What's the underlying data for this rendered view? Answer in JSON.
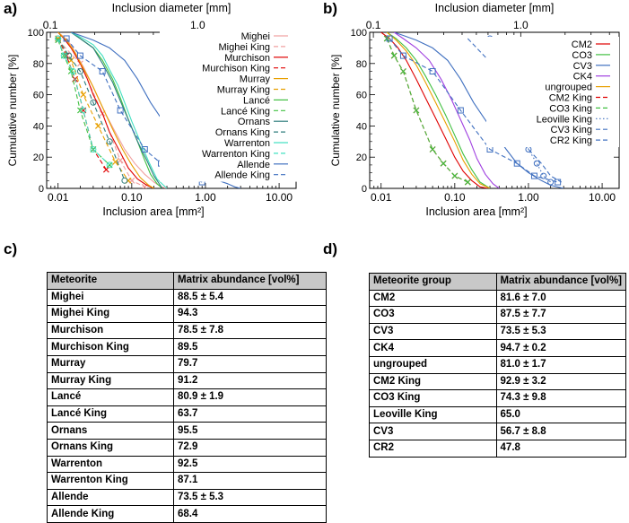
{
  "panels": {
    "a": "a)",
    "b": "b)",
    "c": "c)",
    "d": "d)"
  },
  "chart_data": [
    {
      "id": "a",
      "type": "line",
      "title": "",
      "xscale": "log",
      "xlim": [
        0.007,
        17
      ],
      "ylim": [
        0,
        100
      ],
      "xlabel": "Inclusion area [mm²]",
      "ylabel": "Cumulative number [%]",
      "x2label": "Inclusion diameter [mm]",
      "xticks": [
        0.01,
        0.1,
        1,
        10
      ],
      "xticklabels": [
        "0.01",
        "0.10",
        "1.00",
        "10.00"
      ],
      "x2ticks": [
        0.1,
        1
      ],
      "x2ticklabels": [
        "0.1",
        "1.0"
      ],
      "yticks": [
        0,
        20,
        40,
        60,
        80,
        100
      ],
      "yticklabels": [
        "0",
        "20",
        "40",
        "60",
        "80",
        "100"
      ],
      "legend_position": "top-right",
      "series": [
        {
          "name": "Mighei",
          "color": "#f0a0a0",
          "dash": "solid",
          "marker": "none",
          "x": [
            0.01,
            0.012,
            0.015,
            0.018,
            0.022,
            0.028,
            0.035,
            0.045,
            0.06,
            0.08,
            0.11,
            0.15,
            0.2,
            0.25,
            0.3
          ],
          "y": [
            100,
            97,
            92,
            85,
            78,
            68,
            58,
            47,
            36,
            25,
            16,
            9,
            4,
            1,
            0
          ]
        },
        {
          "name": "Mighei King",
          "color": "#f0a0a0",
          "dash": "dash",
          "marker": "x",
          "x": [
            0.01,
            0.02,
            0.04,
            0.07,
            0.1,
            0.15
          ],
          "y": [
            95,
            80,
            48,
            18,
            5,
            1
          ]
        },
        {
          "name": "Murchison",
          "color": "#e00000",
          "dash": "solid",
          "marker": "none",
          "x": [
            0.01,
            0.012,
            0.015,
            0.02,
            0.025,
            0.03,
            0.04,
            0.05,
            0.07,
            0.09,
            0.12,
            0.16,
            0.2
          ],
          "y": [
            100,
            96,
            90,
            80,
            70,
            60,
            48,
            36,
            23,
            13,
            6,
            2,
            0
          ]
        },
        {
          "name": "Murchison King",
          "color": "#e00000",
          "dash": "dash",
          "marker": "x",
          "x": [
            0.01,
            0.013,
            0.017,
            0.022,
            0.03,
            0.045
          ],
          "y": [
            96,
            85,
            70,
            50,
            25,
            12
          ]
        },
        {
          "name": "Murray",
          "color": "#e8a000",
          "dash": "solid",
          "marker": "none",
          "x": [
            0.01,
            0.013,
            0.017,
            0.022,
            0.03,
            0.04,
            0.055,
            0.075,
            0.1,
            0.13,
            0.17,
            0.2
          ],
          "y": [
            100,
            95,
            87,
            77,
            65,
            52,
            38,
            25,
            15,
            7,
            2,
            0
          ]
        },
        {
          "name": "Murray King",
          "color": "#e8a000",
          "dash": "dash",
          "marker": "x",
          "x": [
            0.01,
            0.015,
            0.022,
            0.035,
            0.06,
            0.09
          ],
          "y": [
            96,
            82,
            60,
            40,
            17,
            5
          ]
        },
        {
          "name": "Lancé",
          "color": "#40c040",
          "dash": "solid",
          "marker": "none",
          "x": [
            0.015,
            0.02,
            0.03,
            0.04,
            0.055,
            0.07,
            0.09,
            0.12,
            0.15,
            0.18,
            0.22,
            0.26
          ],
          "y": [
            100,
            96,
            90,
            82,
            70,
            58,
            44,
            30,
            18,
            9,
            3,
            0
          ]
        },
        {
          "name": "Lancé King",
          "color": "#40c040",
          "dash": "dash",
          "marker": "x",
          "x": [
            0.01,
            0.012,
            0.015,
            0.02,
            0.03,
            0.05
          ],
          "y": [
            95,
            85,
            75,
            50,
            25,
            15
          ]
        },
        {
          "name": "Ornans",
          "color": "#2e7d7d",
          "dash": "solid",
          "marker": "none",
          "x": [
            0.015,
            0.02,
            0.03,
            0.04,
            0.055,
            0.07,
            0.09,
            0.12,
            0.16,
            0.2,
            0.26
          ],
          "y": [
            100,
            96,
            90,
            80,
            68,
            56,
            44,
            30,
            18,
            8,
            0
          ]
        },
        {
          "name": "Ornans King",
          "color": "#2e7d7d",
          "dash": "dash",
          "marker": "o",
          "x": [
            0.01,
            0.014,
            0.02,
            0.03,
            0.05,
            0.08
          ],
          "y": [
            96,
            85,
            75,
            55,
            30,
            5
          ]
        },
        {
          "name": "Warrenton",
          "color": "#40e0c0",
          "dash": "solid",
          "marker": "none",
          "x": [
            0.015,
            0.02,
            0.03,
            0.04,
            0.05,
            0.065,
            0.08,
            0.1,
            0.13,
            0.17,
            0.22,
            0.3
          ],
          "y": [
            100,
            97,
            92,
            85,
            76,
            66,
            55,
            43,
            30,
            17,
            6,
            0
          ]
        },
        {
          "name": "Warrenton King",
          "color": "#40e0c0",
          "dash": "dash",
          "marker": "o",
          "x": [
            0.01,
            0.012,
            0.016,
            0.022,
            0.03,
            0.05
          ],
          "y": [
            96,
            85,
            75,
            50,
            25,
            15
          ]
        },
        {
          "name": "Allende",
          "color": "#4070c0",
          "dash": "solid",
          "marker": "none",
          "x": [
            0.015,
            0.02,
            0.03,
            0.05,
            0.08,
            0.12,
            0.18,
            0.25,
            0.35,
            0.5,
            0.7,
            1.0,
            1.5,
            2.0,
            2.5,
            3.0
          ],
          "y": [
            100,
            98,
            95,
            90,
            82,
            70,
            55,
            45,
            35,
            25,
            16,
            10,
            5,
            3,
            1,
            0
          ]
        },
        {
          "name": "Allende King",
          "color": "#4070c0",
          "dash": "dash",
          "marker": "square",
          "x": [
            0.013,
            0.02,
            0.04,
            0.07,
            0.15,
            0.25,
            0.5,
            0.9
          ],
          "y": [
            96,
            85,
            75,
            50,
            25,
            16,
            8,
            4
          ]
        }
      ]
    },
    {
      "id": "b",
      "type": "line",
      "title": "",
      "xscale": "log",
      "xlim": [
        0.007,
        17
      ],
      "ylim": [
        0,
        100
      ],
      "xlabel": "Inclusion area [mm²]",
      "ylabel": "Cumulative number [%]",
      "x2label": "Inclusion diameter [mm]",
      "xticks": [
        0.01,
        0.1,
        1,
        10
      ],
      "xticklabels": [
        "0.01",
        "0.10",
        "1.00",
        "10.00"
      ],
      "x2ticks": [
        0.1,
        1
      ],
      "x2ticklabels": [
        "0.1",
        "1.0"
      ],
      "yticks": [
        0,
        20,
        40,
        60,
        80,
        100
      ],
      "yticklabels": [
        "0",
        "20",
        "40",
        "60",
        "80",
        "100"
      ],
      "legend_position": "top-right",
      "series": [
        {
          "name": "CM2",
          "color": "#e00000",
          "dash": "solid",
          "marker": "none",
          "x": [
            0.01,
            0.013,
            0.017,
            0.022,
            0.03,
            0.04,
            0.055,
            0.075,
            0.1,
            0.13,
            0.17,
            0.22,
            0.28
          ],
          "y": [
            100,
            96,
            90,
            82,
            70,
            58,
            45,
            32,
            20,
            11,
            5,
            1,
            0
          ]
        },
        {
          "name": "CO3",
          "color": "#40c040",
          "dash": "solid",
          "marker": "none",
          "x": [
            0.012,
            0.016,
            0.022,
            0.03,
            0.04,
            0.055,
            0.075,
            0.1,
            0.13,
            0.17,
            0.22,
            0.3
          ],
          "y": [
            100,
            96,
            90,
            82,
            72,
            60,
            47,
            34,
            22,
            12,
            4,
            0
          ]
        },
        {
          "name": "CV3",
          "color": "#4070c0",
          "dash": "solid",
          "marker": "none",
          "x": [
            0.015,
            0.02,
            0.03,
            0.05,
            0.08,
            0.12,
            0.18,
            0.25,
            0.35,
            0.5,
            0.7,
            1.0,
            1.5,
            2.0,
            3.0
          ],
          "y": [
            100,
            98,
            95,
            90,
            82,
            70,
            55,
            45,
            35,
            25,
            16,
            10,
            5,
            2,
            0
          ]
        },
        {
          "name": "CK4",
          "color": "#a040e0",
          "dash": "solid",
          "marker": "none",
          "x": [
            0.015,
            0.02,
            0.03,
            0.045,
            0.065,
            0.09,
            0.12,
            0.16,
            0.2,
            0.26,
            0.33,
            0.4
          ],
          "y": [
            100,
            96,
            90,
            82,
            70,
            57,
            44,
            31,
            19,
            9,
            3,
            0
          ]
        },
        {
          "name": "ungrouped",
          "color": "#e8a000",
          "dash": "solid",
          "marker": "none",
          "x": [
            0.012,
            0.016,
            0.022,
            0.03,
            0.04,
            0.055,
            0.075,
            0.1,
            0.13,
            0.17,
            0.22,
            0.3
          ],
          "y": [
            100,
            95,
            88,
            79,
            68,
            55,
            42,
            30,
            18,
            9,
            3,
            0
          ]
        },
        {
          "name": "CM2 King",
          "color": "#e00000",
          "dash": "dash",
          "marker": "x",
          "x": [
            0.012,
            0.015,
            0.02,
            0.03,
            0.05,
            0.07,
            0.1,
            0.15
          ],
          "y": [
            96,
            85,
            75,
            50,
            25,
            16,
            8,
            4
          ]
        },
        {
          "name": "CO3 King",
          "color": "#40c040",
          "dash": "dash",
          "marker": "x",
          "x": [
            0.012,
            0.015,
            0.02,
            0.03,
            0.05,
            0.07,
            0.1,
            0.15
          ],
          "y": [
            96,
            85,
            75,
            50,
            25,
            16,
            8,
            4
          ]
        },
        {
          "name": "Leoville King",
          "color": "#4070c0",
          "dash": "dot",
          "marker": "o",
          "x": [
            0.3,
            0.4,
            0.6,
            0.8,
            1.0,
            1.3,
            1.6,
            2.0
          ],
          "y": [
            96,
            85,
            75,
            50,
            25,
            16,
            8,
            4
          ]
        },
        {
          "name": "CV3 King",
          "color": "#4070c0",
          "dash": "dash",
          "marker": "square",
          "x": [
            0.013,
            0.02,
            0.05,
            0.12,
            0.3,
            0.7,
            1.2,
            2.5
          ],
          "y": [
            96,
            85,
            75,
            50,
            25,
            16,
            8,
            4
          ]
        },
        {
          "name": "CR2 King",
          "color": "#4070c0",
          "dash": "dash",
          "marker": "none",
          "x": [
            0.15,
            0.25,
            0.4,
            0.6,
            1.0,
            1.5,
            2.0,
            2.8
          ],
          "y": [
            96,
            85,
            75,
            50,
            25,
            16,
            8,
            4
          ]
        }
      ]
    },
    {
      "id": "c",
      "type": "table",
      "columns": [
        "Meteorite",
        "Matrix abundance [vol%]"
      ],
      "rows": [
        [
          "Mighei",
          "88.5 ± 5.4"
        ],
        [
          "Mighei King",
          "94.3"
        ],
        [
          "Murchison",
          "78.5 ± 7.8"
        ],
        [
          "Murchison King",
          "89.5"
        ],
        [
          "Murray",
          "79.7"
        ],
        [
          "Murray King",
          "91.2"
        ],
        [
          "Lancé",
          "80.9 ± 1.9"
        ],
        [
          "Lancé King",
          "63.7"
        ],
        [
          "Ornans",
          "95.5"
        ],
        [
          "Ornans King",
          "72.9"
        ],
        [
          "Warrenton",
          "92.5"
        ],
        [
          "Warrenton King",
          "87.1"
        ],
        [
          "Allende",
          "73.5 ± 5.3"
        ],
        [
          "Allende King",
          "68.4"
        ]
      ]
    },
    {
      "id": "d",
      "type": "table",
      "columns": [
        "Meteorite group",
        "Matrix abundance [vol%]"
      ],
      "rows": [
        [
          "CM2",
          "81.6 ± 7.0"
        ],
        [
          "CO3",
          "87.5 ± 7.7"
        ],
        [
          "CV3",
          "73.5 ± 5.3"
        ],
        [
          "CK4",
          "94.7 ± 0.2"
        ],
        [
          "ungrouped",
          "81.0 ± 1.7"
        ],
        [
          "CM2 King",
          "92.9 ± 3.2"
        ],
        [
          "CO3 King",
          "74.3 ± 9.8"
        ],
        [
          "Leoville King",
          "65.0"
        ],
        [
          "CV3",
          "56.7 ± 8.8"
        ],
        [
          "CR2",
          "47.8"
        ]
      ]
    }
  ]
}
